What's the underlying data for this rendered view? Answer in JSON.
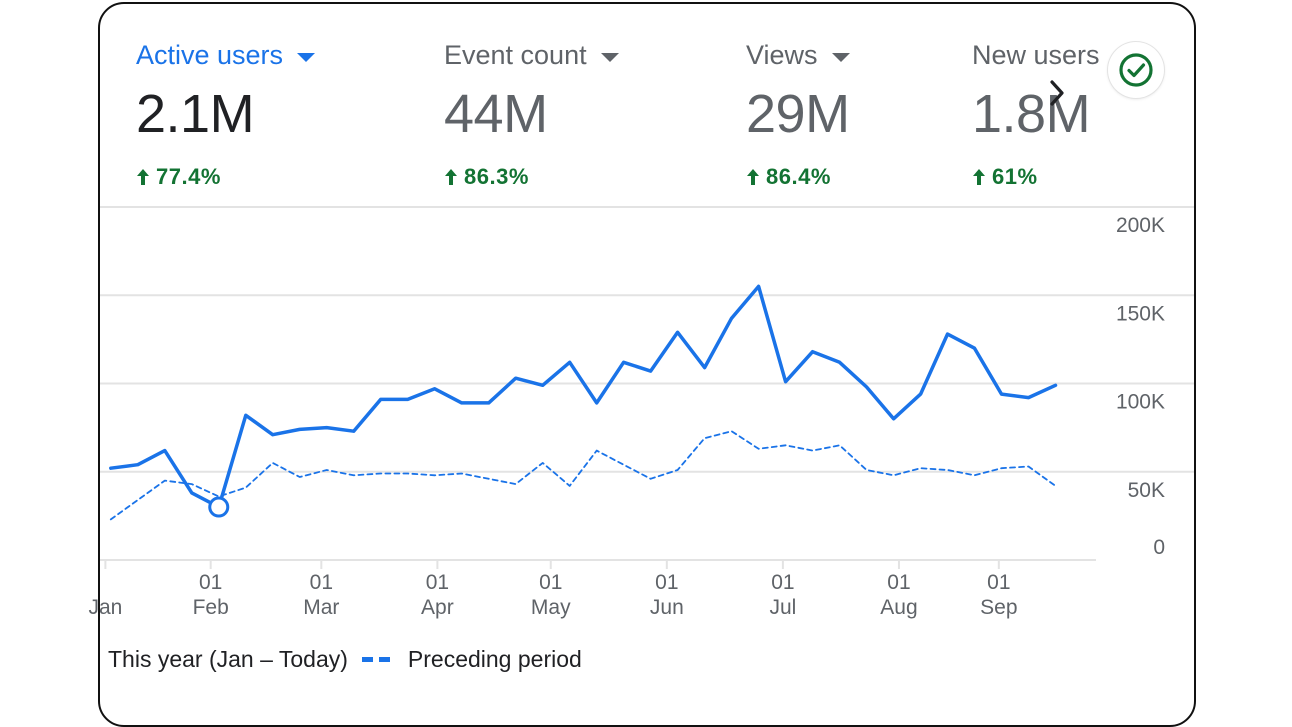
{
  "metrics": [
    {
      "label": "Active users",
      "value": "2.1M",
      "delta": "77.4%"
    },
    {
      "label": "Event count",
      "value": "44M",
      "delta": "86.3%"
    },
    {
      "label": "Views",
      "value": "29M",
      "delta": "86.4%"
    },
    {
      "label": "New users",
      "value": "1.8M",
      "delta": "61%"
    }
  ],
  "icons": {
    "delta": "arrow-up-icon",
    "next": "chevron-right-icon",
    "status": "check-circle-icon"
  },
  "colors": {
    "primary": "#1a73e8",
    "positive": "#137333",
    "grid": "#e3e3e3",
    "axis_text": "#5f6368"
  },
  "chart_data": {
    "type": "line",
    "x_unit": "week",
    "x_start": "2024-01-06",
    "xlim": [
      -0.4,
      36.5
    ],
    "ylim": [
      0,
      200000
    ],
    "y_ticks": [
      0,
      50000,
      100000,
      150000,
      200000
    ],
    "y_tick_labels": [
      "0",
      "50K",
      "100K",
      "150K",
      "200K"
    ],
    "x_ticks": [
      {
        "pos": 3.7,
        "day": "01",
        "month": "Feb"
      },
      {
        "pos": 7.8,
        "day": "01",
        "month": "Mar"
      },
      {
        "pos": 12.1,
        "day": "01",
        "month": "Apr"
      },
      {
        "pos": 16.3,
        "day": "01",
        "month": "May"
      },
      {
        "pos": 20.6,
        "day": "01",
        "month": "Jun"
      },
      {
        "pos": 24.9,
        "day": "01",
        "month": "Jul"
      },
      {
        "pos": 29.2,
        "day": "01",
        "month": "Aug"
      },
      {
        "pos": 32.9,
        "day": "01",
        "month": "Sep"
      }
    ],
    "partial_first_tick": {
      "pos": -0.2,
      "month": "Jan"
    },
    "grid": true,
    "series": [
      {
        "name": "This year (Jan – Today)",
        "style": "solid",
        "values": [
          52000,
          54000,
          62000,
          38000,
          30000,
          82000,
          71000,
          74000,
          75000,
          73000,
          91000,
          91000,
          97000,
          89000,
          89000,
          103000,
          99000,
          112000,
          89000,
          112000,
          107000,
          129000,
          109000,
          137000,
          155000,
          101000,
          118000,
          112000,
          98000,
          80000,
          94000,
          128000,
          120000,
          94000,
          92000,
          99000
        ],
        "highlight_index": 4
      },
      {
        "name": "Preceding period",
        "style": "dashed",
        "values": [
          23000,
          34000,
          45000,
          43000,
          36000,
          41000,
          55000,
          47000,
          51000,
          48000,
          49000,
          49000,
          48000,
          49000,
          46000,
          43000,
          55000,
          42000,
          62000,
          54000,
          46000,
          51000,
          69000,
          73000,
          63000,
          65000,
          62000,
          65000,
          51000,
          48000,
          52000,
          51000,
          48000,
          52000,
          53000,
          42000
        ]
      }
    ]
  }
}
